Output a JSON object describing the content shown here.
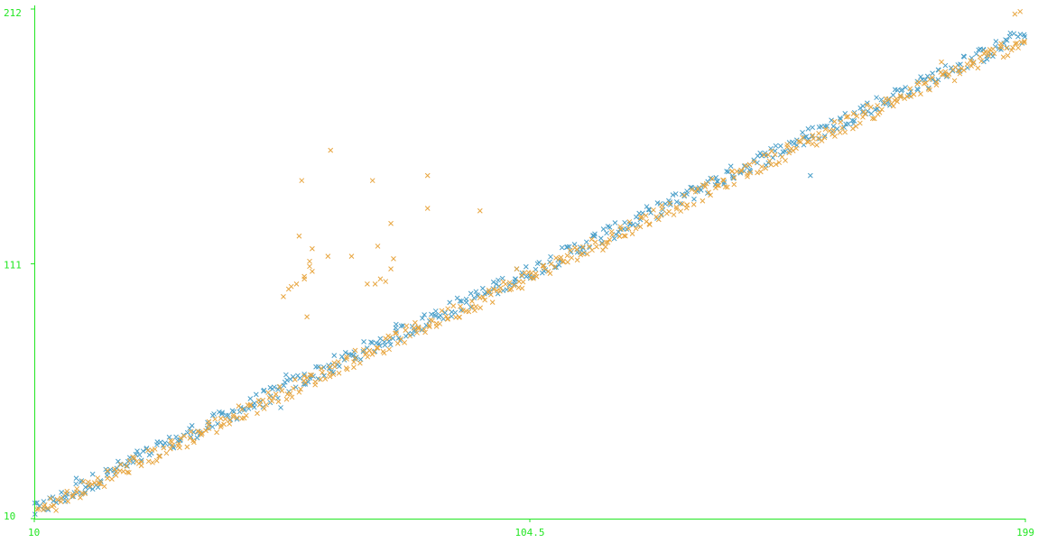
{
  "chart_data": {
    "type": "scatter",
    "marker": "x",
    "title": "",
    "xlabel": "",
    "ylabel": "",
    "xlim": [
      10,
      199
    ],
    "ylim": [
      10,
      212
    ],
    "grid": false,
    "axis_color": "#22e622",
    "x_ticks": [
      {
        "value": 10,
        "label": "10"
      },
      {
        "value": 104.5,
        "label": "104.5"
      },
      {
        "value": 199,
        "label": "199"
      }
    ],
    "y_ticks": [
      {
        "value": 10,
        "label": "10"
      },
      {
        "value": 111,
        "label": "111"
      },
      {
        "value": 212,
        "label": "212"
      }
    ],
    "series": [
      {
        "color": "#4a9fc9",
        "band": {
          "x_range": [
            10,
            199
          ],
          "center": [
            [
              10,
              13
            ],
            [
              30,
              34
            ],
            [
              60,
              64
            ],
            [
              104.5,
              108
            ],
            [
              150,
              154
            ],
            [
              199,
              202
            ]
          ],
          "half_width": 3.2,
          "x_step": 0.8,
          "per_step": 2,
          "jitter": 0.9
        },
        "x": [
          18,
          19,
          55,
          57,
          67,
          58,
          79,
          102,
          158,
          191
        ],
        "y": [
          26,
          25,
          56,
          54,
          68,
          67,
          87,
          109,
          146,
          196
        ]
      },
      {
        "color": "#e8a640",
        "band": {
          "x_range": [
            10,
            199
          ],
          "center": [
            [
              10,
              12
            ],
            [
              30,
              32.5
            ],
            [
              60,
              62.5
            ],
            [
              104.5,
              106
            ],
            [
              150,
              152
            ],
            [
              199,
              200
            ]
          ],
          "half_width": 3.2,
          "x_step": 0.8,
          "per_step": 2,
          "jitter": 0.9
        },
        "x": [
          57.5,
          58.5,
          59,
          60,
          60.5,
          61,
          61.5,
          61.5,
          62,
          62.5,
          62.5,
          63,
          63,
          66,
          66.5,
          70.5,
          73.5,
          75,
          74.5,
          75.5,
          76,
          77,
          78,
          78,
          78.5,
          85,
          85,
          95,
          102,
          183,
          197,
          198
        ],
        "y": [
          98,
          101,
          102,
          103,
          122,
          144,
          105,
          106,
          90,
          110,
          112,
          117,
          108,
          114,
          156,
          114,
          103,
          103,
          144,
          118,
          105,
          104,
          127,
          109,
          113,
          146,
          133,
          132,
          109,
          191,
          210,
          211
        ]
      }
    ]
  }
}
